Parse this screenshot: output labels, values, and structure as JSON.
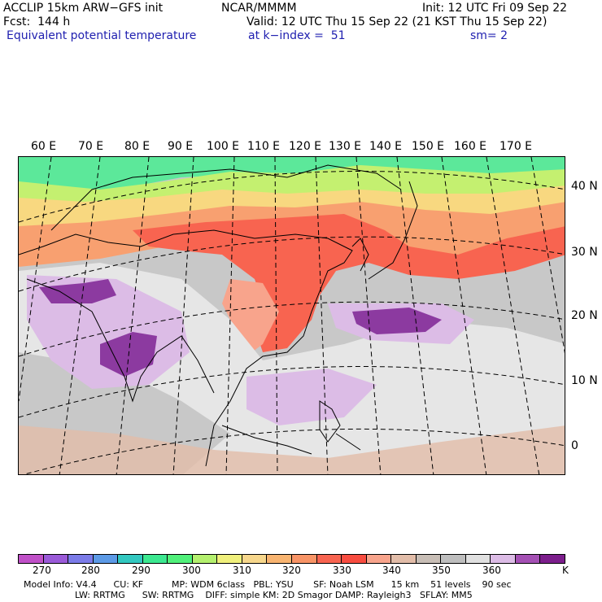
{
  "header": {
    "model": "ACCLIP 15km ARW−GFS init",
    "org": "NCAR/MMMM",
    "init": "Init: 12 UTC Fri 09 Sep 22",
    "fcst": "Fcst:  144 h",
    "valid": "Valid: 12 UTC Thu 15 Sep 22 (21 KST Thu 15 Sep 22)",
    "field": "Equivalent potential temperature",
    "level": "at k−index =  51",
    "smooth": "sm= 2"
  },
  "map": {
    "lon_labels": [
      "60 E",
      "70 E",
      "80 E",
      "90 E",
      "100 E",
      "110 E",
      "120 E",
      "130 E",
      "140 E",
      "150 E",
      "160 E",
      "170 E"
    ],
    "lat_labels": [
      "40 N",
      "30 N",
      "20 N",
      "10 N",
      "0"
    ]
  },
  "colorbar": {
    "colors": [
      "#c050c8",
      "#9a5ad8",
      "#7b7be8",
      "#5c9ae6",
      "#32c8c0",
      "#3ce890",
      "#50f07a",
      "#b4f06e",
      "#f0f07c",
      "#f7d78c",
      "#f8b470",
      "#f89466",
      "#f86450",
      "#f84c40",
      "#f8a48c",
      "#e2bda9",
      "#c8beb6",
      "#bebebe",
      "#e0e0e0",
      "#dcbce6",
      "#a450b4",
      "#7c1e8c"
    ],
    "ticks": [
      "270",
      "280",
      "290",
      "300",
      "310",
      "320",
      "330",
      "340",
      "350",
      "360",
      "K"
    ]
  },
  "model_info": {
    "line1": "Model Info: V4.4      CU: KF          MP: WDM 6class   PBL: YSU       SF: Noah LSM      15 km    51 levels    90 sec",
    "line2": "                  LW: RRTMG      SW: RRTMG    DIFF: simple KM: 2D Smagor DAMP: Rayleigh3   SFLAY: MM5"
  }
}
